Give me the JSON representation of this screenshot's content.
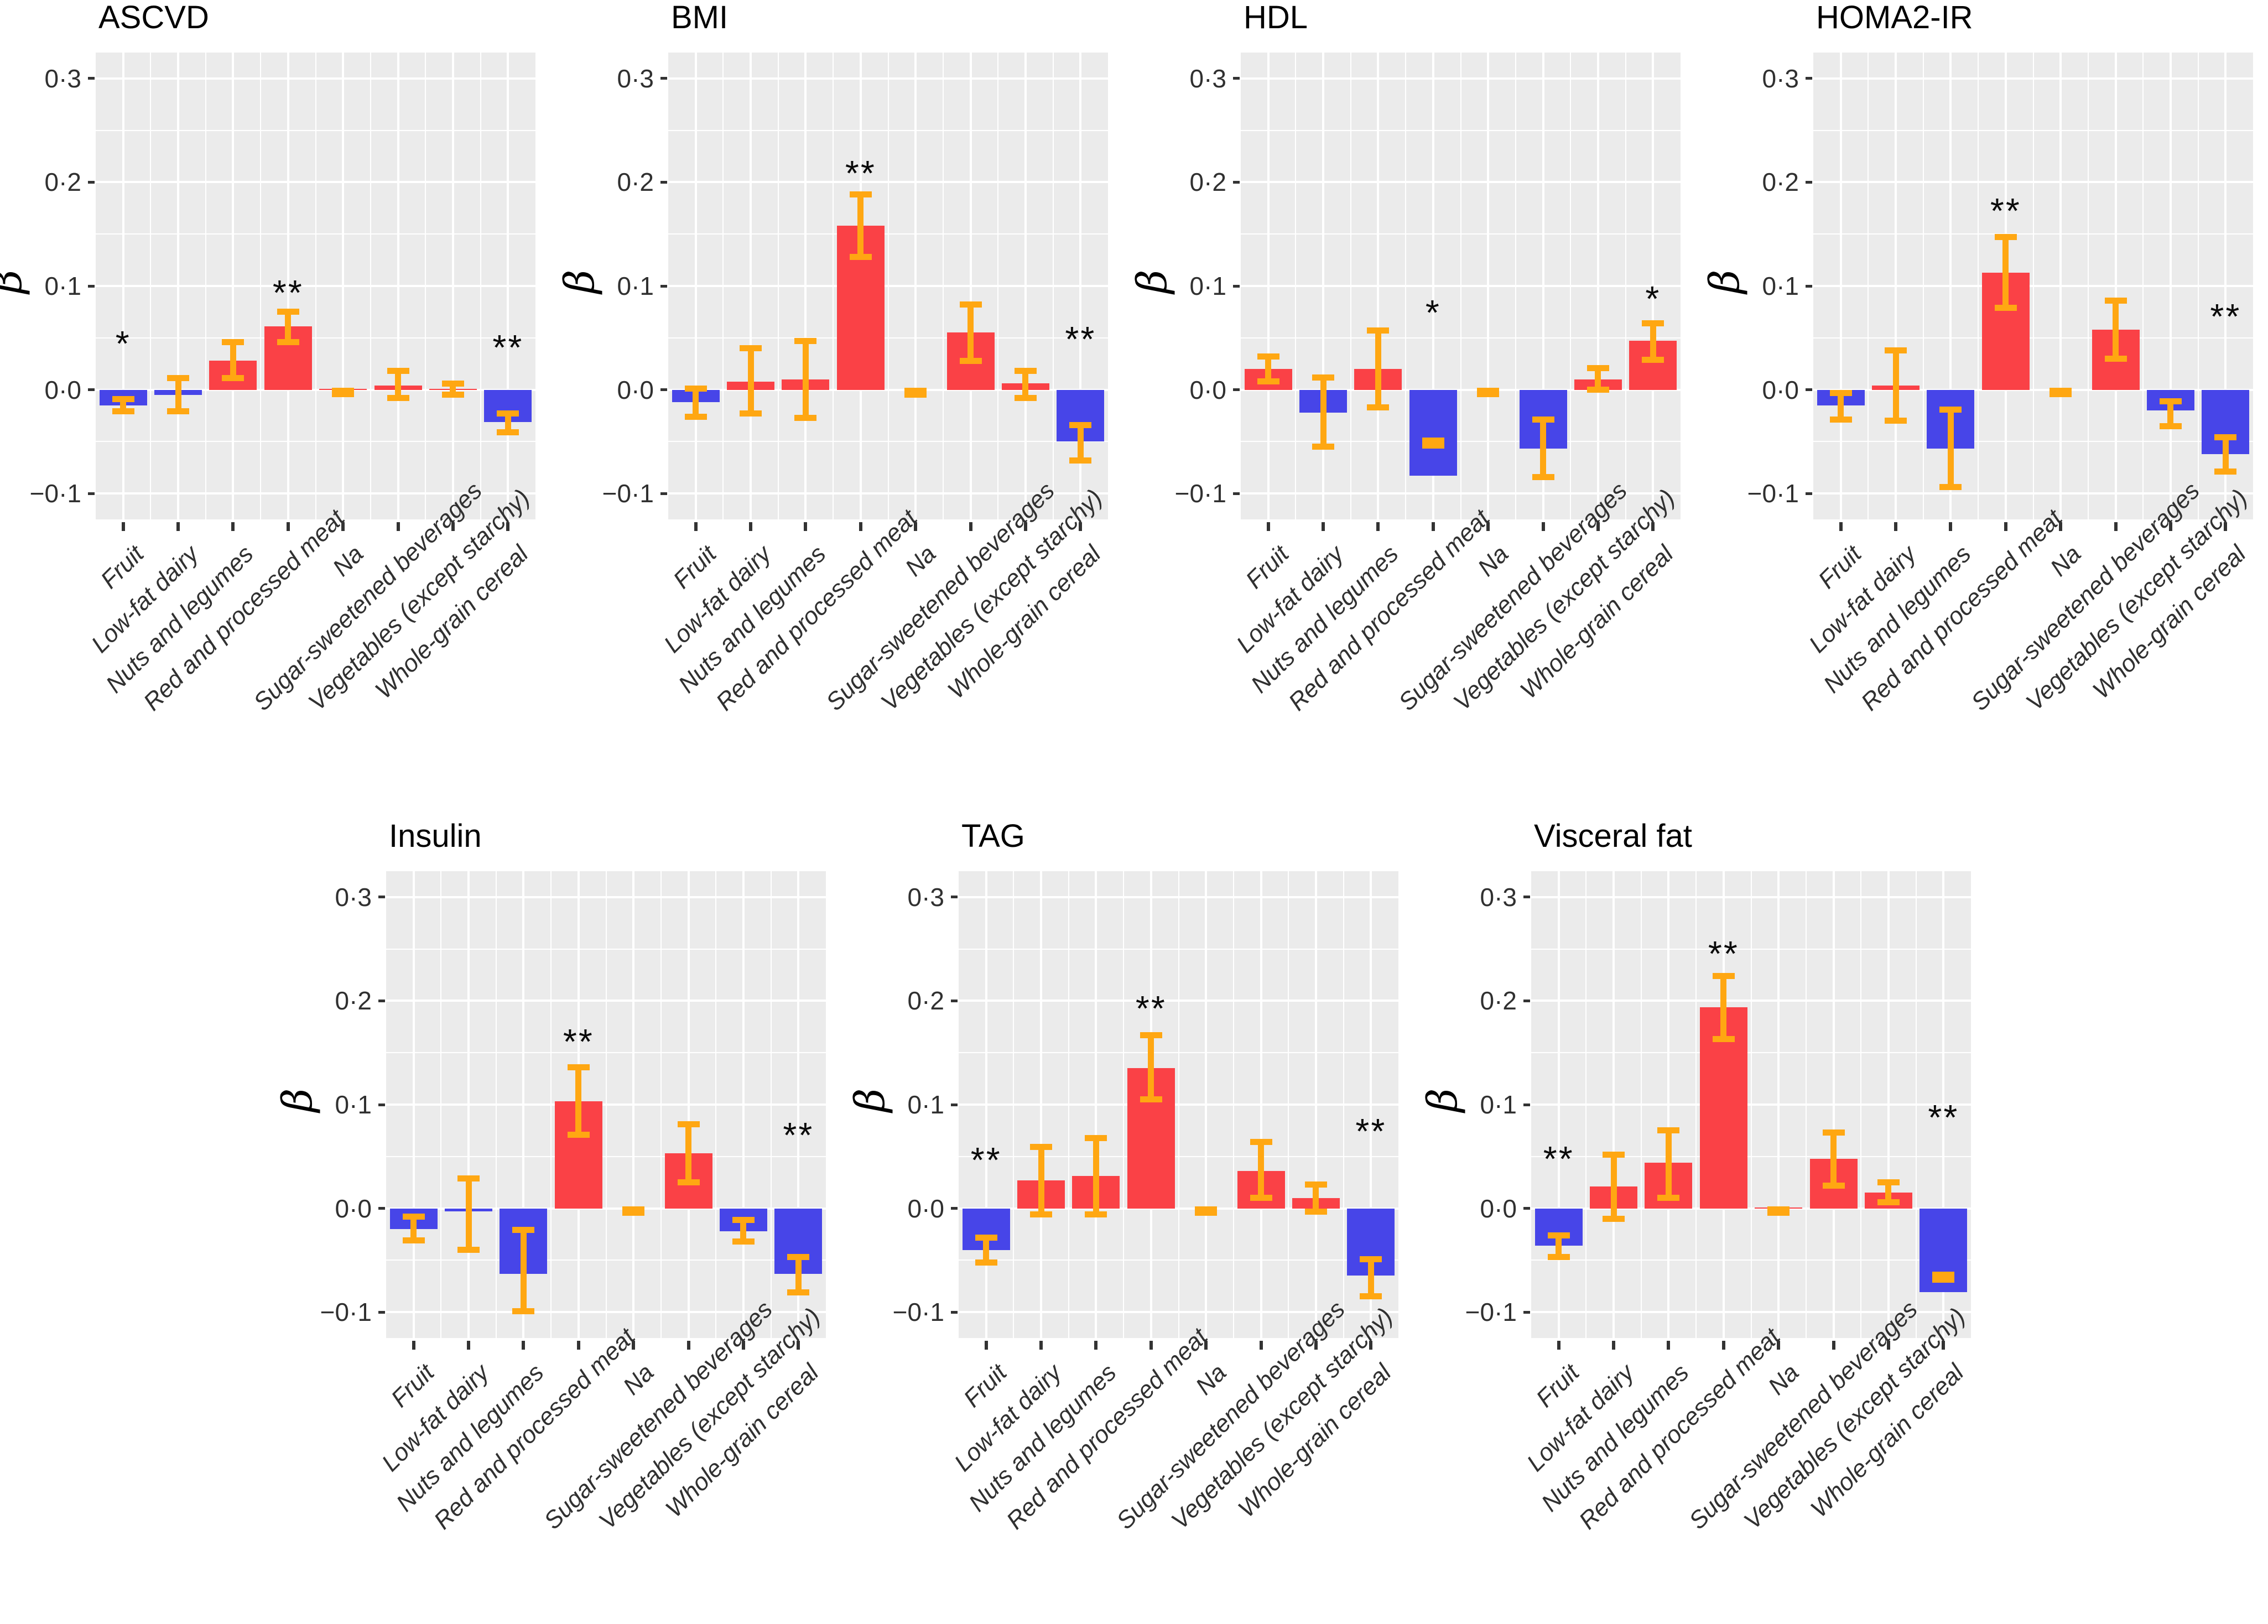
{
  "figure": {
    "background": "#FFFFFF",
    "ylabel": "β",
    "significance_marks": {
      "p_lt_05": "*",
      "p_lt_01": "**"
    }
  },
  "chart_data": {
    "type": "bar",
    "title": "",
    "xlabel": "",
    "ylabel": "β",
    "ylim": [
      -0.125,
      0.325
    ],
    "grid": {
      "major_step": 0.1,
      "minor_step": 0.05,
      "color": "#FFFFFF",
      "panel_background": "#EBEBEB"
    },
    "legend_position": "none",
    "ytick_values": [
      0.3,
      0.2,
      0.1,
      0.0,
      -0.1
    ],
    "ytick_labels": [
      "0·3",
      "0·2",
      "0·1",
      "0·0",
      "−0·1"
    ],
    "categories": [
      "Fruit",
      "Low-fat dairy",
      "Nuts and legumes",
      "Red and processed meat",
      "Na",
      "Sugar-sweetened beverages",
      "Vegetables (except starchy)",
      "Whole-grain cereal"
    ],
    "colors": {
      "positive_bar": "#FA4146",
      "negative_bar": "#4745E8",
      "error_bar": "#FFA712",
      "panel_bg": "#EBEBEB",
      "gridline": "#FFFFFF",
      "axis_text": "#303030",
      "tick_mark": "#333333",
      "title_text": "#000000",
      "significance": "#0A0A0A"
    },
    "panels": [
      {
        "title": "ASCVD",
        "values": [
          -0.015,
          -0.005,
          0.028,
          0.061,
          0.001,
          0.004,
          0.001,
          -0.031
        ],
        "ci_low": [
          -0.021,
          -0.021,
          0.011,
          0.046,
          -0.004,
          -0.008,
          -0.005,
          -0.041
        ],
        "ci_high": [
          -0.009,
          0.011,
          0.046,
          0.075,
          -0.001,
          0.018,
          0.006,
          -0.023
        ],
        "sig": [
          "*",
          "",
          "",
          "**",
          "",
          "",
          "",
          "**"
        ],
        "sig_y": [
          0.042,
          null,
          null,
          0.091,
          null,
          null,
          null,
          0.038
        ]
      },
      {
        "title": "BMI",
        "values": [
          -0.012,
          0.008,
          0.01,
          0.158,
          0.0,
          0.055,
          0.006,
          -0.05
        ],
        "ci_low": [
          -0.026,
          -0.023,
          -0.027,
          0.128,
          -0.005,
          0.028,
          -0.008,
          -0.068
        ],
        "ci_high": [
          0.001,
          0.04,
          0.047,
          0.188,
          -0.001,
          0.082,
          0.018,
          -0.034
        ],
        "sig": [
          "",
          "",
          "",
          "**",
          "",
          "",
          "",
          "**"
        ],
        "sig_y": [
          null,
          null,
          null,
          0.206,
          null,
          null,
          null,
          0.046
        ]
      },
      {
        "title": "HDL",
        "values": [
          0.02,
          -0.022,
          0.02,
          -0.083,
          0.0,
          -0.057,
          0.01,
          0.047
        ],
        "ci_low": [
          0.008,
          -0.055,
          -0.017,
          -0.054,
          -0.004,
          -0.084,
          0.0,
          0.029
        ],
        "ci_high": [
          0.032,
          0.012,
          0.057,
          -0.049,
          -0.001,
          -0.029,
          0.021,
          0.064
        ],
        "sig": [
          "",
          "",
          "",
          "*",
          "",
          "",
          "",
          "*"
        ],
        "sig_y": [
          null,
          null,
          null,
          0.072,
          null,
          null,
          null,
          0.085
        ]
      },
      {
        "title": "HOMA2-IR",
        "values": [
          -0.015,
          0.004,
          -0.057,
          0.113,
          0.0,
          0.058,
          -0.02,
          -0.062
        ],
        "ci_low": [
          -0.029,
          -0.03,
          -0.094,
          0.079,
          -0.004,
          0.03,
          -0.035,
          -0.079
        ],
        "ci_high": [
          -0.003,
          0.038,
          -0.019,
          0.147,
          -0.001,
          0.086,
          -0.011,
          -0.046
        ],
        "sig": [
          "",
          "",
          "",
          "**",
          "",
          "",
          "",
          "**"
        ],
        "sig_y": [
          null,
          null,
          null,
          0.17,
          null,
          null,
          null,
          0.068
        ]
      },
      {
        "title": "Insulin",
        "values": [
          -0.02,
          -0.003,
          -0.063,
          0.103,
          0.0,
          0.053,
          -0.022,
          -0.063
        ],
        "ci_low": [
          -0.031,
          -0.04,
          -0.099,
          0.071,
          -0.004,
          0.025,
          -0.032,
          -0.081
        ],
        "ci_high": [
          -0.008,
          0.029,
          -0.021,
          0.136,
          -0.001,
          0.081,
          -0.011,
          -0.047
        ],
        "sig": [
          "",
          "",
          "",
          "**",
          "",
          "",
          "",
          "**"
        ],
        "sig_y": [
          null,
          null,
          null,
          0.158,
          null,
          null,
          null,
          0.068
        ]
      },
      {
        "title": "TAG",
        "values": [
          -0.04,
          0.027,
          0.031,
          0.135,
          0.0,
          0.036,
          0.01,
          -0.065
        ],
        "ci_low": [
          -0.052,
          -0.006,
          -0.006,
          0.105,
          -0.004,
          0.01,
          -0.003,
          -0.085
        ],
        "ci_high": [
          -0.028,
          0.059,
          0.068,
          0.167,
          -0.001,
          0.064,
          0.023,
          -0.049
        ],
        "sig": [
          "**",
          "",
          "",
          "**",
          "",
          "",
          "",
          "**"
        ],
        "sig_y": [
          0.044,
          null,
          null,
          0.19,
          null,
          null,
          null,
          0.072
        ]
      },
      {
        "title": "Visceral fat",
        "values": [
          -0.036,
          0.021,
          0.044,
          0.194,
          0.001,
          0.048,
          0.015,
          -0.081
        ],
        "ci_low": [
          -0.047,
          -0.01,
          0.01,
          0.163,
          -0.004,
          0.022,
          0.006,
          -0.069
        ],
        "ci_high": [
          -0.026,
          0.052,
          0.075,
          0.224,
          -0.001,
          0.073,
          0.025,
          -0.064
        ],
        "sig": [
          "**",
          "",
          "",
          "**",
          "",
          "",
          "",
          "**"
        ],
        "sig_y": [
          0.045,
          null,
          null,
          0.243,
          null,
          null,
          null,
          0.085
        ]
      }
    ]
  }
}
